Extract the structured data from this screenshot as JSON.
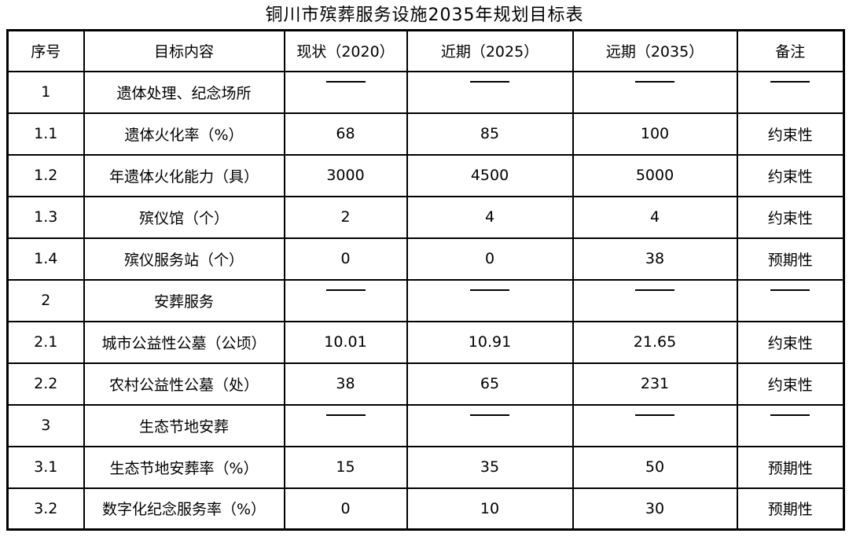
{
  "title": "铜川市殡葬服务设施2035年规划目标表",
  "dash": "——",
  "table": {
    "columns": [
      "序号",
      "目标内容",
      "现状（2020）",
      "近期（2025）",
      "远期（2035）",
      "备注"
    ],
    "column_keys": [
      "no",
      "content",
      "v2020",
      "v2025",
      "v2035",
      "note"
    ],
    "rows": [
      {
        "no": "1",
        "content": "遗体处理、纪念场所",
        "v2020": "——",
        "v2025": "——",
        "v2035": "——",
        "note": "——",
        "category": true
      },
      {
        "no": "1.1",
        "content": "遗体火化率（%）",
        "v2020": "68",
        "v2025": "85",
        "v2035": "100",
        "note": "约束性",
        "category": false
      },
      {
        "no": "1.2",
        "content": "年遗体火化能力（具）",
        "v2020": "3000",
        "v2025": "4500",
        "v2035": "5000",
        "note": "约束性",
        "category": false
      },
      {
        "no": "1.3",
        "content": "殡仪馆（个）",
        "v2020": "2",
        "v2025": "4",
        "v2035": "4",
        "note": "约束性",
        "category": false
      },
      {
        "no": "1.4",
        "content": "殡仪服务站（个）",
        "v2020": "0",
        "v2025": "0",
        "v2035": "38",
        "note": "预期性",
        "category": false
      },
      {
        "no": "2",
        "content": "安葬服务",
        "v2020": "——",
        "v2025": "——",
        "v2035": "——",
        "note": "——",
        "category": true
      },
      {
        "no": "2.1",
        "content": "城市公益性公墓（公顷）",
        "v2020": "10.01",
        "v2025": "10.91",
        "v2035": "21.65",
        "note": "约束性",
        "category": false
      },
      {
        "no": "2.2",
        "content": "农村公益性公墓（处）",
        "v2020": "38",
        "v2025": "65",
        "v2035": "231",
        "note": "约束性",
        "category": false
      },
      {
        "no": "3",
        "content": "生态节地安葬",
        "v2020": "——",
        "v2025": "——",
        "v2035": "——",
        "note": "——",
        "category": true
      },
      {
        "no": "3.1",
        "content": "生态节地安葬率（%）",
        "v2020": "15",
        "v2025": "35",
        "v2035": "50",
        "note": "预期性",
        "category": false
      },
      {
        "no": "3.2",
        "content": "数字化纪念服务率（%）",
        "v2020": "0",
        "v2025": "10",
        "v2035": "30",
        "note": "预期性",
        "category": false
      }
    ]
  }
}
